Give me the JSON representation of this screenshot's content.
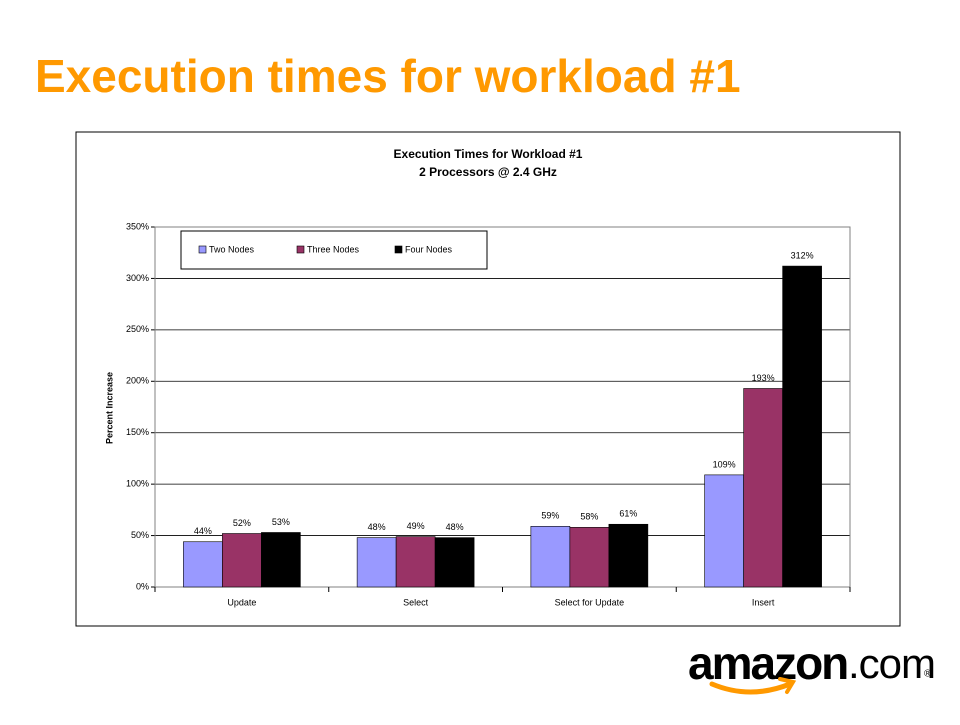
{
  "slide_title": "Execution times for workload #1",
  "logo": {
    "name": "amazon",
    "suffix": ".com",
    "mark": "®"
  },
  "chart_data": {
    "type": "bar",
    "title": "Execution Times for Workload #1",
    "subtitle": "2 Processors @ 2.4 GHz",
    "ylabel": "Percent Increase",
    "categories": [
      "Update",
      "Select",
      "Select for Update",
      "Insert"
    ],
    "series": [
      {
        "name": "Two Nodes",
        "color": "#9999ff",
        "values": [
          44,
          48,
          59,
          109
        ],
        "value_labels": [
          "44%",
          "48%",
          "59%",
          "109%"
        ]
      },
      {
        "name": "Three Nodes",
        "color": "#993366",
        "values": [
          52,
          49,
          58,
          193
        ],
        "value_labels": [
          "52%",
          "49%",
          "58%",
          "193%"
        ]
      },
      {
        "name": "Four Nodes",
        "color": "#000000",
        "values": [
          53,
          48,
          61,
          312
        ],
        "value_labels": [
          "53%",
          "48%",
          "61%",
          "312%"
        ]
      }
    ],
    "ylim": [
      0,
      350
    ],
    "yticks": [
      {
        "value": 0,
        "label": "0%"
      },
      {
        "value": 50,
        "label": "50%"
      },
      {
        "value": 100,
        "label": "100%"
      },
      {
        "value": 150,
        "label": "150%"
      },
      {
        "value": 200,
        "label": "200%"
      },
      {
        "value": 250,
        "label": "250%"
      },
      {
        "value": 300,
        "label": "300%"
      },
      {
        "value": 350,
        "label": "350%"
      }
    ],
    "grid": true,
    "legend": "top-left"
  }
}
